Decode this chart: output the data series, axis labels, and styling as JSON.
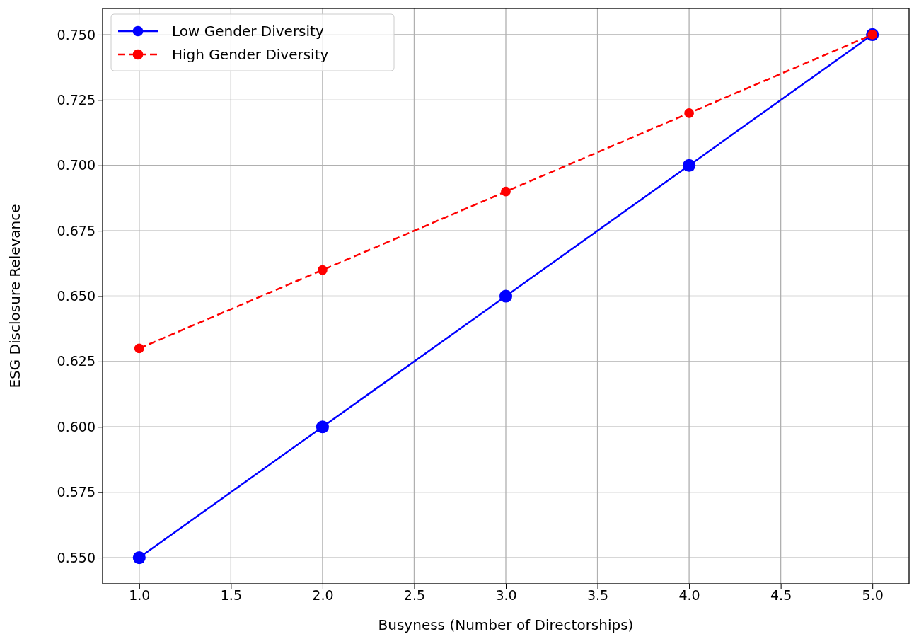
{
  "chart_data": {
    "type": "line",
    "xlabel": "Busyness (Number of Directorships)",
    "ylabel": "ESG Disclosure Relevance",
    "x": [
      1,
      2,
      3,
      4,
      5
    ],
    "series": [
      {
        "name": "Low Gender Diversity",
        "color": "#0000ff",
        "values": [
          0.55,
          0.6,
          0.65,
          0.7,
          0.75
        ],
        "line_style": "solid"
      },
      {
        "name": "High Gender Diversity",
        "color": "#ff0000",
        "values": [
          0.63,
          0.66,
          0.69,
          0.72,
          0.75
        ],
        "line_style": "dashed"
      }
    ],
    "xlim": [
      0.8,
      5.2
    ],
    "xticks": [
      {
        "value": 1,
        "label": "1.0"
      },
      {
        "value": 1.5,
        "label": "1.5"
      },
      {
        "value": 2,
        "label": "2.0"
      },
      {
        "value": 2.5,
        "label": "2.5"
      },
      {
        "value": 3,
        "label": "3.0"
      },
      {
        "value": 3.5,
        "label": "3.5"
      },
      {
        "value": 4,
        "label": "4.0"
      },
      {
        "value": 4.5,
        "label": "4.5"
      },
      {
        "value": 5,
        "label": "5.0"
      }
    ],
    "ylim": [
      0.54,
      0.76
    ],
    "yticks": [
      {
        "value": 0.55,
        "label": "0.550"
      },
      {
        "value": 0.575,
        "label": "0.575"
      },
      {
        "value": 0.6,
        "label": "0.600"
      },
      {
        "value": 0.625,
        "label": "0.625"
      },
      {
        "value": 0.65,
        "label": "0.650"
      },
      {
        "value": 0.675,
        "label": "0.675"
      },
      {
        "value": 0.7,
        "label": "0.700"
      },
      {
        "value": 0.725,
        "label": "0.725"
      },
      {
        "value": 0.75,
        "label": "0.750"
      }
    ],
    "grid": true,
    "legend": "top left",
    "marker": "circle"
  }
}
